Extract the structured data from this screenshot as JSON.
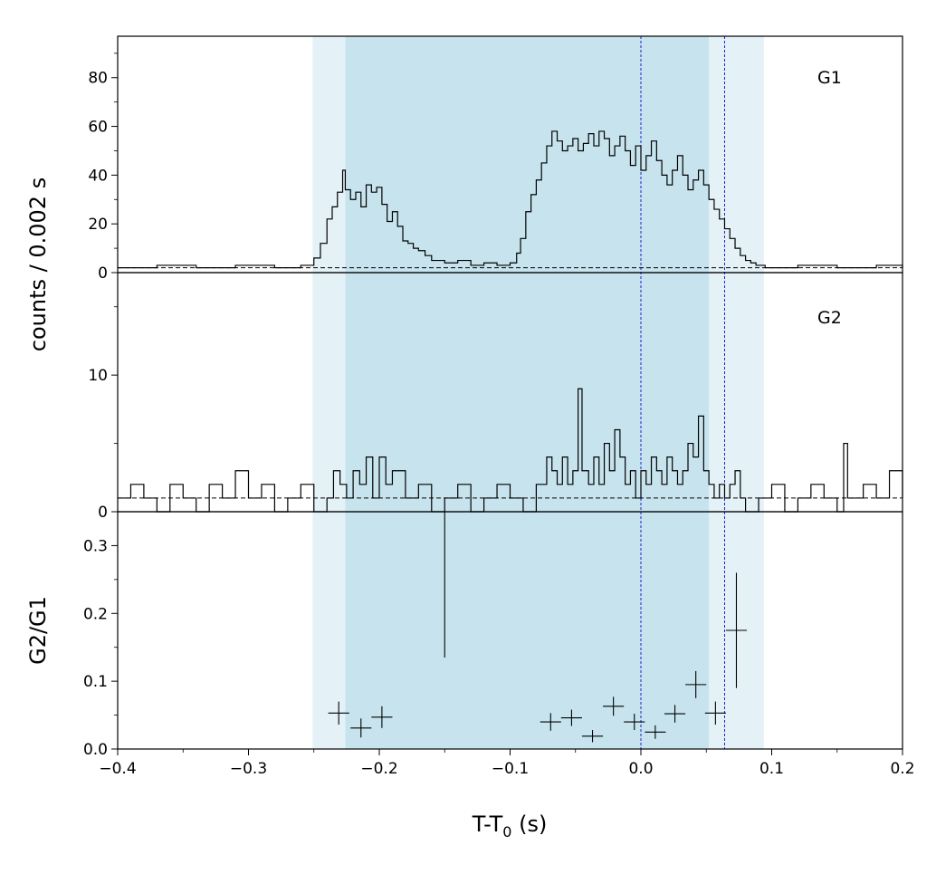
{
  "chart_data": {
    "type": "line",
    "x_axis": {
      "label": "T-T",
      "label_subscript": "0",
      "label_suffix": " (s)",
      "range": [
        -0.4,
        0.2
      ],
      "ticks": [
        -0.4,
        -0.3,
        -0.2,
        -0.1,
        0.0,
        0.1,
        0.2
      ],
      "tick_labels": [
        "−0.4",
        "−0.3",
        "−0.2",
        "−0.1",
        "0.0",
        "0.1",
        "0.2"
      ]
    },
    "shared_ylabel": "counts /  0.002 s",
    "shaded_regions": [
      {
        "x0": -0.251,
        "x1": 0.094,
        "color": "#e4f2f8"
      },
      {
        "x0": -0.226,
        "x1": 0.052,
        "color": "#c7e4ee"
      }
    ],
    "vlines": [
      {
        "x": 0.0,
        "color": "#1a22cc"
      },
      {
        "x": 0.064,
        "color": "#1a22cc"
      }
    ],
    "panels": [
      {
        "name": "G1",
        "label": "G1",
        "ylim": [
          0,
          97
        ],
        "yticks": [
          0,
          20,
          40,
          60,
          80
        ],
        "ytick_labels": [
          "0",
          "20",
          "40",
          "60",
          "80"
        ],
        "background": 2,
        "histogram": [
          [
            -0.4,
            2
          ],
          [
            -0.37,
            3
          ],
          [
            -0.34,
            2
          ],
          [
            -0.31,
            3
          ],
          [
            -0.28,
            2
          ],
          [
            -0.26,
            3
          ],
          [
            -0.25,
            6
          ],
          [
            -0.245,
            12
          ],
          [
            -0.24,
            22
          ],
          [
            -0.236,
            27
          ],
          [
            -0.232,
            33
          ],
          [
            -0.228,
            42
          ],
          [
            -0.226,
            34
          ],
          [
            -0.222,
            30
          ],
          [
            -0.218,
            33
          ],
          [
            -0.214,
            27
          ],
          [
            -0.21,
            36
          ],
          [
            -0.206,
            33
          ],
          [
            -0.202,
            35
          ],
          [
            -0.198,
            28
          ],
          [
            -0.194,
            21
          ],
          [
            -0.19,
            25
          ],
          [
            -0.186,
            19
          ],
          [
            -0.182,
            13
          ],
          [
            -0.178,
            12
          ],
          [
            -0.174,
            10
          ],
          [
            -0.17,
            9
          ],
          [
            -0.165,
            7
          ],
          [
            -0.16,
            5
          ],
          [
            -0.15,
            4
          ],
          [
            -0.14,
            5
          ],
          [
            -0.13,
            3
          ],
          [
            -0.12,
            4
          ],
          [
            -0.11,
            3
          ],
          [
            -0.1,
            4
          ],
          [
            -0.095,
            8
          ],
          [
            -0.092,
            14
          ],
          [
            -0.088,
            25
          ],
          [
            -0.084,
            32
          ],
          [
            -0.08,
            38
          ],
          [
            -0.076,
            45
          ],
          [
            -0.072,
            52
          ],
          [
            -0.068,
            58
          ],
          [
            -0.064,
            54
          ],
          [
            -0.06,
            50
          ],
          [
            -0.056,
            52
          ],
          [
            -0.052,
            55
          ],
          [
            -0.048,
            50
          ],
          [
            -0.044,
            53
          ],
          [
            -0.04,
            57
          ],
          [
            -0.036,
            52
          ],
          [
            -0.032,
            58
          ],
          [
            -0.028,
            55
          ],
          [
            -0.024,
            48
          ],
          [
            -0.02,
            52
          ],
          [
            -0.016,
            56
          ],
          [
            -0.012,
            50
          ],
          [
            -0.008,
            44
          ],
          [
            -0.004,
            52
          ],
          [
            0.0,
            42
          ],
          [
            0.004,
            48
          ],
          [
            0.008,
            54
          ],
          [
            0.012,
            46
          ],
          [
            0.016,
            40
          ],
          [
            0.02,
            36
          ],
          [
            0.024,
            42
          ],
          [
            0.028,
            48
          ],
          [
            0.032,
            40
          ],
          [
            0.036,
            34
          ],
          [
            0.04,
            38
          ],
          [
            0.044,
            42
          ],
          [
            0.048,
            36
          ],
          [
            0.052,
            30
          ],
          [
            0.056,
            26
          ],
          [
            0.06,
            22
          ],
          [
            0.064,
            18
          ],
          [
            0.068,
            14
          ],
          [
            0.072,
            10
          ],
          [
            0.076,
            7
          ],
          [
            0.08,
            5
          ],
          [
            0.084,
            4
          ],
          [
            0.088,
            3
          ],
          [
            0.095,
            2
          ],
          [
            0.12,
            3
          ],
          [
            0.15,
            2
          ],
          [
            0.18,
            3
          ],
          [
            0.2,
            2
          ]
        ]
      },
      {
        "name": "G2",
        "label": "G2",
        "ylim": [
          0,
          17.5
        ],
        "yticks": [
          0,
          10
        ],
        "ytick_labels": [
          "0",
          "10"
        ],
        "background": 1,
        "histogram": [
          [
            -0.4,
            1
          ],
          [
            -0.39,
            2
          ],
          [
            -0.38,
            1
          ],
          [
            -0.37,
            0
          ],
          [
            -0.36,
            2
          ],
          [
            -0.35,
            1
          ],
          [
            -0.34,
            0
          ],
          [
            -0.33,
            2
          ],
          [
            -0.32,
            1
          ],
          [
            -0.31,
            3
          ],
          [
            -0.3,
            1
          ],
          [
            -0.29,
            2
          ],
          [
            -0.28,
            0
          ],
          [
            -0.27,
            1
          ],
          [
            -0.26,
            2
          ],
          [
            -0.25,
            0
          ],
          [
            -0.24,
            1
          ],
          [
            -0.235,
            3
          ],
          [
            -0.23,
            2
          ],
          [
            -0.225,
            1
          ],
          [
            -0.22,
            3
          ],
          [
            -0.215,
            2
          ],
          [
            -0.21,
            4
          ],
          [
            -0.205,
            1
          ],
          [
            -0.2,
            4
          ],
          [
            -0.195,
            2
          ],
          [
            -0.19,
            3
          ],
          [
            -0.18,
            1
          ],
          [
            -0.17,
            2
          ],
          [
            -0.16,
            0
          ],
          [
            -0.15,
            1
          ],
          [
            -0.14,
            2
          ],
          [
            -0.13,
            0
          ],
          [
            -0.12,
            1
          ],
          [
            -0.11,
            2
          ],
          [
            -0.1,
            1
          ],
          [
            -0.09,
            0
          ],
          [
            -0.08,
            2
          ],
          [
            -0.072,
            4
          ],
          [
            -0.068,
            3
          ],
          [
            -0.064,
            2
          ],
          [
            -0.06,
            4
          ],
          [
            -0.056,
            2
          ],
          [
            -0.052,
            3
          ],
          [
            -0.048,
            9
          ],
          [
            -0.045,
            3
          ],
          [
            -0.04,
            2
          ],
          [
            -0.036,
            4
          ],
          [
            -0.032,
            2
          ],
          [
            -0.028,
            5
          ],
          [
            -0.024,
            3
          ],
          [
            -0.02,
            6
          ],
          [
            -0.016,
            4
          ],
          [
            -0.012,
            2
          ],
          [
            -0.008,
            3
          ],
          [
            -0.004,
            1
          ],
          [
            0.0,
            3
          ],
          [
            0.004,
            2
          ],
          [
            0.008,
            4
          ],
          [
            0.012,
            3
          ],
          [
            0.016,
            2
          ],
          [
            0.02,
            4
          ],
          [
            0.024,
            3
          ],
          [
            0.028,
            2
          ],
          [
            0.032,
            3
          ],
          [
            0.036,
            5
          ],
          [
            0.04,
            4
          ],
          [
            0.044,
            7
          ],
          [
            0.048,
            3
          ],
          [
            0.052,
            2
          ],
          [
            0.056,
            1
          ],
          [
            0.06,
            2
          ],
          [
            0.064,
            1
          ],
          [
            0.068,
            2
          ],
          [
            0.072,
            3
          ],
          [
            0.076,
            1
          ],
          [
            0.08,
            0
          ],
          [
            0.09,
            1
          ],
          [
            0.1,
            2
          ],
          [
            0.11,
            0
          ],
          [
            0.12,
            1
          ],
          [
            0.13,
            2
          ],
          [
            0.14,
            1
          ],
          [
            0.15,
            0
          ],
          [
            0.155,
            5
          ],
          [
            0.158,
            1
          ],
          [
            0.17,
            2
          ],
          [
            0.18,
            1
          ],
          [
            0.19,
            3
          ],
          [
            0.2,
            1
          ]
        ]
      },
      {
        "name": "G2/G1",
        "ylabel": "G2/G1",
        "ylim": [
          0,
          0.35
        ],
        "yticks": [
          0.0,
          0.1,
          0.2,
          0.3
        ],
        "ytick_labels": [
          "0.0",
          "0.1",
          "0.2",
          "0.3"
        ],
        "points": [
          {
            "x": -0.231,
            "y": 0.053,
            "xerr": 0.008,
            "yerr": 0.017
          },
          {
            "x": -0.214,
            "y": 0.031,
            "xerr": 0.008,
            "yerr": 0.014
          },
          {
            "x": -0.198,
            "y": 0.047,
            "xerr": 0.008,
            "yerr": 0.016
          },
          {
            "x": -0.15,
            "y": 0.35,
            "xerr": 0.0,
            "yerr": 0.215
          },
          {
            "x": -0.069,
            "y": 0.04,
            "xerr": 0.008,
            "yerr": 0.013
          },
          {
            "x": -0.053,
            "y": 0.046,
            "xerr": 0.008,
            "yerr": 0.012
          },
          {
            "x": -0.037,
            "y": 0.019,
            "xerr": 0.008,
            "yerr": 0.009
          },
          {
            "x": -0.021,
            "y": 0.063,
            "xerr": 0.008,
            "yerr": 0.014
          },
          {
            "x": -0.005,
            "y": 0.04,
            "xerr": 0.008,
            "yerr": 0.012
          },
          {
            "x": 0.011,
            "y": 0.025,
            "xerr": 0.008,
            "yerr": 0.01
          },
          {
            "x": 0.026,
            "y": 0.052,
            "xerr": 0.008,
            "yerr": 0.013
          },
          {
            "x": 0.042,
            "y": 0.095,
            "xerr": 0.008,
            "yerr": 0.02
          },
          {
            "x": 0.057,
            "y": 0.053,
            "xerr": 0.008,
            "yerr": 0.017
          },
          {
            "x": 0.073,
            "y": 0.175,
            "xerr": 0.008,
            "yerr": 0.085
          }
        ]
      }
    ]
  }
}
